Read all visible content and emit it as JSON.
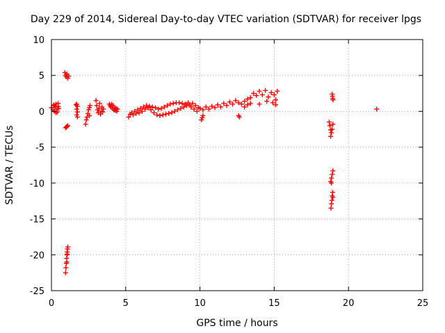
{
  "chart_data": {
    "type": "scatter",
    "title": "Day 229 of 2014, Sidereal Day-to-day VTEC variation (SDTVAR) for receiver lpgs",
    "xlabel": "GPS time / hours",
    "ylabel": "SDTVAR / TECUs",
    "xlim": [
      0,
      25
    ],
    "ylim": [
      -25,
      10
    ],
    "xticks": [
      0,
      5,
      10,
      15,
      20,
      25
    ],
    "xtick_labels": [
      "0",
      "5",
      "10",
      "15",
      "20",
      "25"
    ],
    "yticks": [
      -25,
      -20,
      -15,
      -10,
      -5,
      0,
      5,
      10
    ],
    "ytick_labels": [
      "-25",
      "-20",
      "-15",
      "-10",
      "-5",
      "0",
      "5",
      "10"
    ],
    "grid": true,
    "marker": "plus",
    "series": [
      {
        "name": "SDTVAR",
        "color": "#ff0000",
        "points": [
          [
            0.0,
            0.5
          ],
          [
            0.1,
            0.2
          ],
          [
            0.15,
            0.9
          ],
          [
            0.2,
            0.0
          ],
          [
            0.25,
            0.6
          ],
          [
            0.3,
            1.0
          ],
          [
            0.35,
            0.3
          ],
          [
            0.4,
            -0.1
          ],
          [
            0.45,
            0.7
          ],
          [
            0.5,
            0.4
          ],
          [
            0.3,
            -0.2
          ],
          [
            0.2,
            0.8
          ],
          [
            0.45,
            1.1
          ],
          [
            0.9,
            5.4
          ],
          [
            0.95,
            5.0
          ],
          [
            1.0,
            4.8
          ],
          [
            1.05,
            5.2
          ],
          [
            1.1,
            4.6
          ],
          [
            1.15,
            4.9
          ],
          [
            0.95,
            -2.3
          ],
          [
            1.0,
            -2.2
          ],
          [
            1.05,
            -2.1
          ],
          [
            1.1,
            -2.0
          ],
          [
            0.95,
            -22.5
          ],
          [
            0.97,
            -21.8
          ],
          [
            1.0,
            -21.2
          ],
          [
            1.02,
            -20.5
          ],
          [
            1.04,
            -20.0
          ],
          [
            1.06,
            -19.6
          ],
          [
            1.08,
            -19.2
          ],
          [
            1.1,
            -18.9
          ],
          [
            1.03,
            -21.0
          ],
          [
            1.07,
            -19.9
          ],
          [
            1.65,
            0.9
          ],
          [
            1.7,
            1.0
          ],
          [
            1.75,
            0.7
          ],
          [
            1.7,
            0.3
          ],
          [
            1.75,
            -0.1
          ],
          [
            1.7,
            -0.5
          ],
          [
            1.75,
            -0.8
          ],
          [
            2.3,
            -1.8
          ],
          [
            2.35,
            -1.2
          ],
          [
            2.4,
            -0.8
          ],
          [
            2.45,
            -0.3
          ],
          [
            2.5,
            0.2
          ],
          [
            2.55,
            0.5
          ],
          [
            2.6,
            0.8
          ],
          [
            2.55,
            -0.6
          ],
          [
            3.0,
            1.5
          ],
          [
            3.05,
            0.8
          ],
          [
            3.1,
            0.2
          ],
          [
            3.15,
            -0.2
          ],
          [
            3.2,
            0.4
          ],
          [
            3.25,
            1.1
          ],
          [
            3.3,
            -0.4
          ],
          [
            3.35,
            0.0
          ],
          [
            3.4,
            0.6
          ],
          [
            3.45,
            -0.1
          ],
          [
            3.5,
            0.3
          ],
          [
            3.9,
            1.0
          ],
          [
            3.95,
            0.8
          ],
          [
            4.0,
            0.6
          ],
          [
            4.05,
            1.0
          ],
          [
            4.1,
            0.4
          ],
          [
            4.15,
            0.8
          ],
          [
            4.2,
            0.2
          ],
          [
            4.25,
            0.5
          ],
          [
            4.3,
            0.1
          ],
          [
            4.35,
            0.4
          ],
          [
            4.4,
            0.0
          ],
          [
            4.45,
            0.3
          ],
          [
            5.2,
            -0.8
          ],
          [
            5.3,
            -0.4
          ],
          [
            5.4,
            -0.2
          ],
          [
            5.5,
            -0.5
          ],
          [
            5.6,
            0.0
          ],
          [
            5.7,
            -0.3
          ],
          [
            5.8,
            0.2
          ],
          [
            5.9,
            -0.2
          ],
          [
            6.0,
            0.4
          ],
          [
            6.1,
            0.0
          ],
          [
            6.2,
            0.6
          ],
          [
            6.3,
            0.3
          ],
          [
            6.4,
            0.8
          ],
          [
            6.5,
            0.5
          ],
          [
            6.6,
            0.7
          ],
          [
            6.7,
            0.2
          ],
          [
            6.8,
            0.6
          ],
          [
            6.9,
            -0.2
          ],
          [
            7.0,
            0.5
          ],
          [
            7.1,
            -0.5
          ],
          [
            7.2,
            0.3
          ],
          [
            7.3,
            -0.6
          ],
          [
            7.4,
            0.4
          ],
          [
            7.5,
            -0.5
          ],
          [
            7.6,
            0.6
          ],
          [
            7.7,
            -0.4
          ],
          [
            7.8,
            0.8
          ],
          [
            7.9,
            -0.3
          ],
          [
            8.0,
            1.0
          ],
          [
            8.1,
            -0.2
          ],
          [
            8.2,
            1.1
          ],
          [
            8.3,
            0.0
          ],
          [
            8.4,
            1.2
          ],
          [
            8.5,
            0.2
          ],
          [
            8.6,
            1.2
          ],
          [
            8.7,
            0.4
          ],
          [
            8.8,
            1.1
          ],
          [
            8.9,
            0.6
          ],
          [
            9.0,
            1.0
          ],
          [
            9.1,
            0.8
          ],
          [
            9.2,
            1.2
          ],
          [
            9.3,
            0.9
          ],
          [
            9.4,
            0.6
          ],
          [
            9.5,
            1.1
          ],
          [
            9.6,
            0.3
          ],
          [
            9.7,
            0.8
          ],
          [
            9.8,
            0.0
          ],
          [
            9.9,
            0.5
          ],
          [
            10.1,
            -1.2
          ],
          [
            10.15,
            -0.9
          ],
          [
            10.2,
            -0.6
          ],
          [
            10.0,
            0.4
          ],
          [
            10.2,
            0.2
          ],
          [
            10.4,
            0.6
          ],
          [
            10.6,
            0.3
          ],
          [
            10.8,
            0.7
          ],
          [
            11.0,
            0.5
          ],
          [
            11.2,
            0.9
          ],
          [
            11.4,
            0.6
          ],
          [
            11.6,
            1.1
          ],
          [
            11.8,
            0.8
          ],
          [
            12.0,
            1.3
          ],
          [
            12.2,
            1.0
          ],
          [
            12.4,
            1.5
          ],
          [
            12.6,
            1.2
          ],
          [
            12.8,
            1.0
          ],
          [
            13.0,
            1.4
          ],
          [
            13.2,
            1.7
          ],
          [
            13.4,
            1.9
          ],
          [
            13.6,
            2.5
          ],
          [
            13.8,
            2.2
          ],
          [
            14.0,
            2.8
          ],
          [
            14.2,
            2.3
          ],
          [
            14.4,
            2.9
          ],
          [
            14.6,
            2.0
          ],
          [
            14.8,
            2.6
          ],
          [
            15.0,
            2.3
          ],
          [
            15.1,
            1.6
          ],
          [
            15.2,
            2.8
          ],
          [
            14.9,
            1.2
          ],
          [
            14.5,
            1.4
          ],
          [
            12.6,
            -0.6
          ],
          [
            12.65,
            -0.8
          ],
          [
            13.0,
            0.6
          ],
          [
            13.2,
            0.9
          ],
          [
            13.4,
            1.1
          ],
          [
            14.0,
            1.0
          ],
          [
            15.1,
            0.9
          ],
          [
            18.9,
            2.4
          ],
          [
            18.92,
            2.1
          ],
          [
            18.94,
            1.8
          ],
          [
            18.96,
            1.6
          ],
          [
            18.7,
            -1.5
          ],
          [
            18.75,
            -2.0
          ],
          [
            18.8,
            -2.6
          ],
          [
            18.85,
            -3.0
          ],
          [
            18.8,
            -3.5
          ],
          [
            18.9,
            -2.5
          ],
          [
            18.95,
            -1.8
          ],
          [
            18.8,
            -9.8
          ],
          [
            18.85,
            -9.3
          ],
          [
            18.9,
            -8.8
          ],
          [
            18.95,
            -8.3
          ],
          [
            18.85,
            -10.0
          ],
          [
            18.82,
            -13.5
          ],
          [
            18.85,
            -12.9
          ],
          [
            18.88,
            -12.4
          ],
          [
            18.9,
            -11.8
          ],
          [
            18.93,
            -11.3
          ],
          [
            18.95,
            -12.0
          ],
          [
            21.9,
            0.3
          ]
        ]
      }
    ]
  }
}
